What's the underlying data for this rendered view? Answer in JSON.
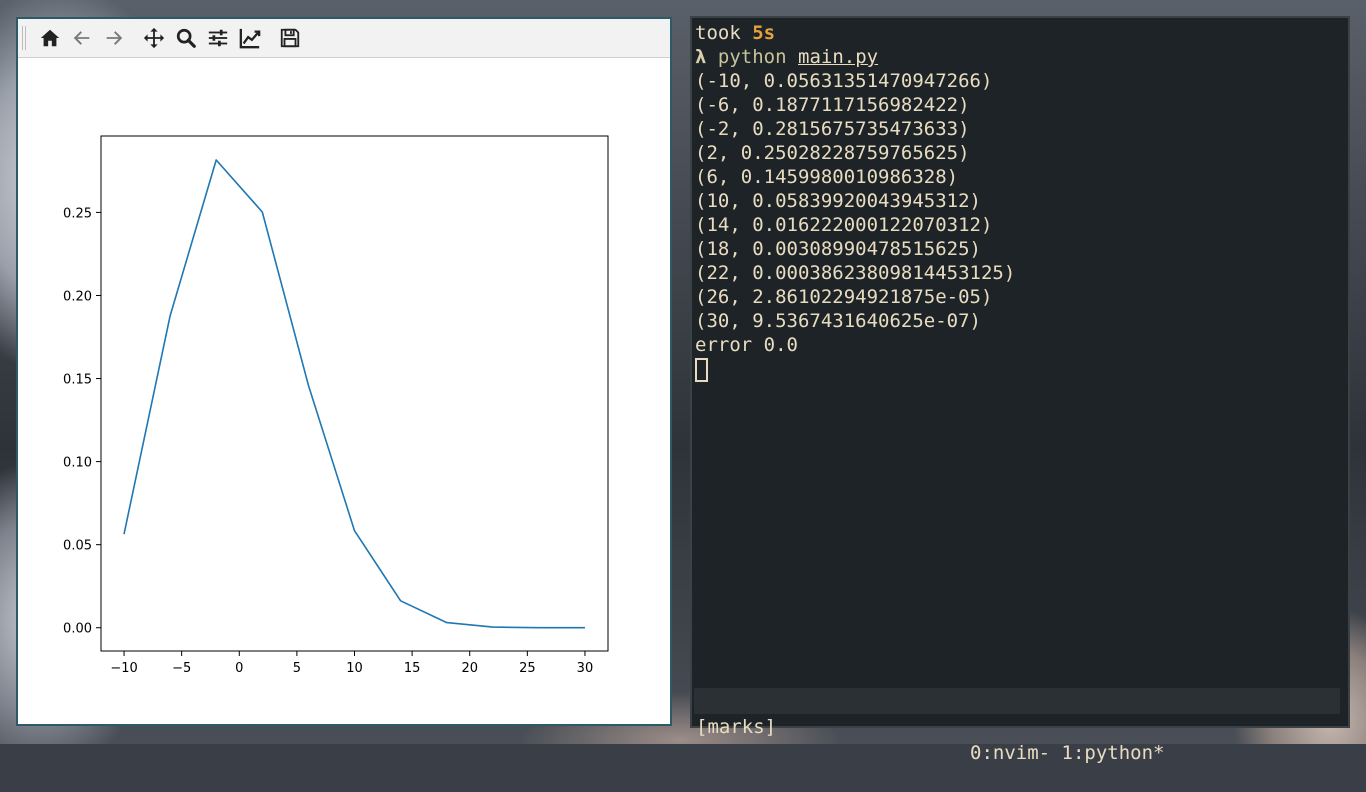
{
  "toolbar": {
    "buttons": [
      {
        "icon": "home-icon"
      },
      {
        "icon": "back-arrow-icon"
      },
      {
        "icon": "forward-arrow-icon"
      },
      {
        "icon": "pan-icon"
      },
      {
        "icon": "zoom-icon"
      },
      {
        "icon": "subplots-configure-icon"
      },
      {
        "icon": "edit-axes-icon"
      },
      {
        "icon": "save-icon"
      }
    ]
  },
  "chart_data": {
    "type": "line",
    "x": [
      -10,
      -6,
      -2,
      2,
      6,
      10,
      14,
      18,
      22,
      26,
      30
    ],
    "series": [
      {
        "values": [
          0.05631351470947266,
          0.1877117156982422,
          0.2815675735473633,
          0.25028228759765625,
          0.1459980010986328,
          0.05839920043945312,
          0.016222000122070312,
          0.00308990478515625,
          0.00038623809814453125,
          2.86102294921875e-05,
          9.5367431640625e-07
        ],
        "color": "#1f77b4"
      }
    ],
    "xticks": [
      "−10",
      "−5",
      "0",
      "5",
      "10",
      "15",
      "20",
      "25",
      "30"
    ],
    "yticks": [
      "0.00",
      "0.05",
      "0.10",
      "0.15",
      "0.20",
      "0.25"
    ],
    "xlim": [
      -12,
      32
    ],
    "ylim": [
      -0.014,
      0.296
    ],
    "grid": false,
    "title": "",
    "xlabel": "",
    "ylabel": ""
  },
  "terminal": {
    "took_prefix": "took ",
    "took_value": "5s",
    "prompt_symbol": "λ",
    "command": "python",
    "argument": "main.py",
    "output": [
      "(-10, 0.05631351470947266)",
      "(-6, 0.1877117156982422)",
      "(-2, 0.2815675735473633)",
      "(2, 0.25028228759765625)",
      "(6, 0.1459980010986328)",
      "(10, 0.05839920043945312)",
      "(14, 0.016222000122070312)",
      "(18, 0.00308990478515625)",
      "(22, 0.00038623809814453125)",
      "(26, 2.86102294921875e-05)",
      "(30, 9.5367431640625e-07)",
      "error 0.0"
    ],
    "status_left": "[marks]",
    "status_right": "0:nvim- 1:python*"
  },
  "colors": {
    "line": "#1f77b4",
    "terminal_bg": "#1d2326",
    "terminal_text": "#e8dcc0",
    "took_value": "#e6a23c"
  }
}
